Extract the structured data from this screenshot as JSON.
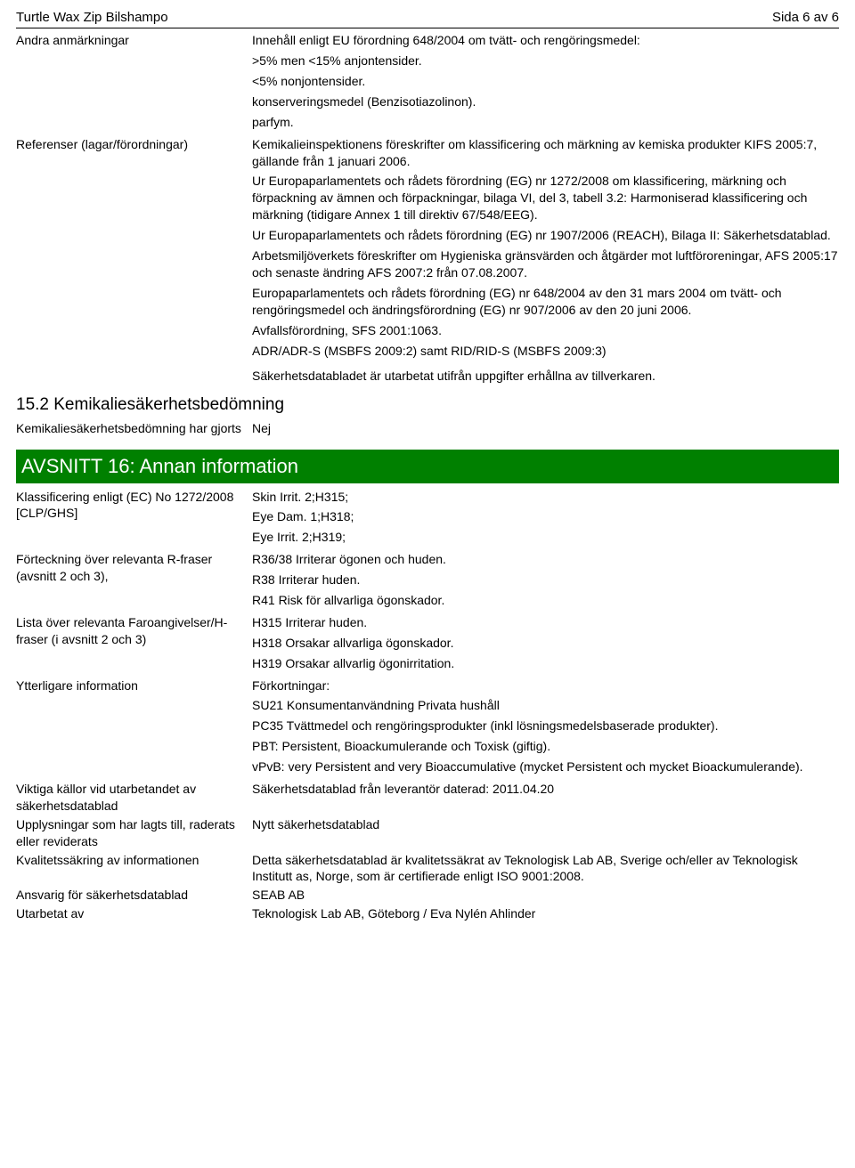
{
  "header": {
    "product": "Turtle Wax Zip Bilshampo",
    "page": "Sida 6 av 6"
  },
  "andraAnm": {
    "label": "Andra anmärkningar",
    "p1": "Innehåll enligt EU förordning 648/2004 om tvätt- och rengöringsmedel:",
    "p2": ">5% men <15% anjontensider.",
    "p3": "<5% nonjontensider.",
    "p4": "konserveringsmedel (Benzisotiazolinon).",
    "p5": "parfym."
  },
  "referenser": {
    "label": "Referenser (lagar/förordningar)",
    "p1": "Kemikalieinspektionens föreskrifter om klassificering och märkning av kemiska produkter KIFS 2005:7, gällande från 1 januari 2006.",
    "p2": "Ur Europaparlamentets och rådets förordning (EG) nr 1272/2008 om klassificering, märkning och förpackning av ämnen och förpackningar, bilaga VI, del 3, tabell 3.2: Harmoniserad klassificering och märkning (tidigare Annex 1 till direktiv 67/548/EEG).",
    "p3": "Ur Europaparlamentets och rådets förordning (EG) nr 1907/2006 (REACH), Bilaga II: Säkerhetsdatablad.",
    "p4": "Arbetsmiljöverkets föreskrifter om Hygieniska gränsvärden och åtgärder mot luftföroreningar, AFS 2005:17 och senaste ändring AFS 2007:2 från 07.08.2007.",
    "p5": "Europaparlamentets och rådets förordning (EG) nr 648/2004 av den 31 mars 2004 om tvätt- och rengöringsmedel och ändringsförordning (EG) nr 907/2006 av den 20 juni 2006.",
    "p6": "Avfallsförordning, SFS 2001:1063.",
    "p7": "ADR/ADR-S (MSBFS 2009:2) samt RID/RID-S (MSBFS 2009:3)",
    "p8": "Säkerhetsdatabladet är utarbetat utifrån uppgifter erhållna av tillverkaren."
  },
  "sect15_2": {
    "title": "15.2 Kemikaliesäkerhetsbedömning",
    "row": {
      "label": "Kemikaliesäkerhetsbedömning har gjorts",
      "value": "Nej"
    }
  },
  "sect16": {
    "title": "AVSNITT 16: Annan information",
    "klass": {
      "label": "Klassificering enligt (EC) No 1272/2008 [CLP/GHS]",
      "p1": "Skin Irrit. 2;H315;",
      "p2": "Eye Dam. 1;H318;",
      "p3": "Eye Irrit. 2;H319;"
    },
    "rfraser": {
      "label": "Förteckning över relevanta R-fraser (avsnitt 2 och 3),",
      "p1": "R36/38 Irriterar ögonen och huden.",
      "p2": "R38 Irriterar huden.",
      "p3": "R41 Risk för allvarliga ögonskador."
    },
    "hfraser": {
      "label": "Lista över relevanta Faroangivelser/H-fraser (i avsnitt 2 och 3)",
      "p1": "H315 Irriterar huden.",
      "p2": "H318 Orsakar allvarliga ögonskador.",
      "p3": "H319 Orsakar allvarlig ögonirritation."
    },
    "ytter": {
      "label": "Ytterligare information",
      "p1": "Förkortningar:",
      "p2": "SU21 Konsumentanvändning Privata hushåll",
      "p3": "PC35 Tvättmedel och rengöringsprodukter (inkl lösningsmedelsbaserade produkter).",
      "p4": "PBT: Persistent, Bioackumulerande och Toxisk (giftig).",
      "p5": "vPvB: very Persistent and very Bioaccumulative (mycket Persistent och mycket Bioackumulerande)."
    },
    "kallor": {
      "label": "Viktiga källor vid utarbetandet av säkerhetsdatablad",
      "value": "Säkerhetsdatablad från leverantör daterad: 2011.04.20"
    },
    "upplys": {
      "label": "Upplysningar som har lagts till, raderats eller reviderats",
      "value": "Nytt säkerhetsdatablad"
    },
    "kvalitet": {
      "label": "Kvalitetssäkring av informationen",
      "value": "Detta säkerhetsdatablad är kvalitetssäkrat av Teknologisk Lab AB, Sverige och/eller av Teknologisk Institutt as, Norge, som är certifierade enligt ISO 9001:2008."
    },
    "ansvarig": {
      "label": "Ansvarig för säkerhetsdatablad",
      "value": "SEAB AB"
    },
    "utarbetat": {
      "label": "Utarbetat av",
      "value": "Teknologisk Lab AB, Göteborg / Eva Nylén Ahlinder"
    }
  }
}
